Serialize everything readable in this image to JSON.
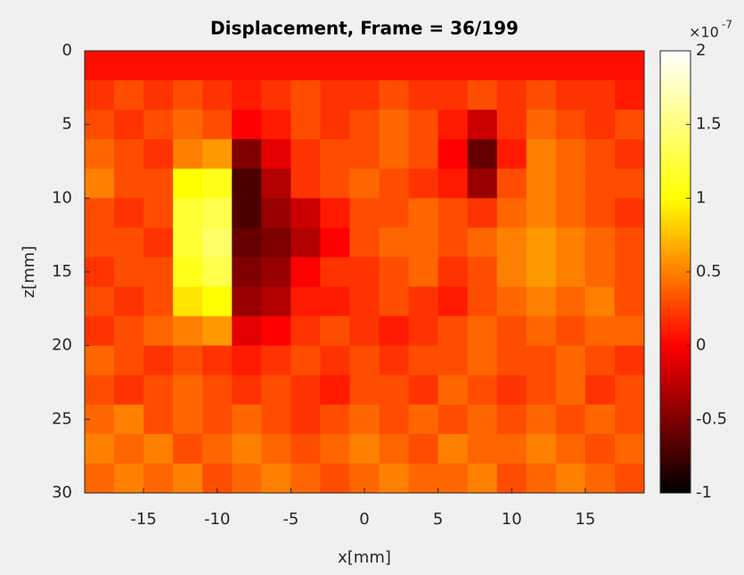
{
  "chart_data": {
    "type": "heatmap",
    "title": "Displacement, Frame = 36/199",
    "xlabel": "x[mm]",
    "ylabel": "z[mm]",
    "xlim": [
      -19,
      19
    ],
    "ylim": [
      0,
      30
    ],
    "y_reversed": true,
    "xticks": [
      -15,
      -10,
      -5,
      0,
      5,
      10,
      15
    ],
    "yticks": [
      0,
      5,
      10,
      15,
      20,
      25,
      30
    ],
    "colormap": "hot",
    "clim": [
      -1,
      2
    ],
    "colorbar_ticks": [
      -1,
      -0.5,
      0,
      0.5,
      1,
      1.5,
      2
    ],
    "colorbar_multiplier": {
      "base": "×10",
      "exponent": "-7"
    },
    "x": [
      -18,
      -16,
      -14,
      -12,
      -10,
      -8,
      -6,
      -4,
      -2,
      0,
      2,
      4,
      6,
      8,
      10,
      12,
      14,
      16,
      18
    ],
    "z": [
      1,
      3,
      5,
      7,
      9,
      11,
      13,
      15,
      17,
      19,
      21,
      23,
      25,
      27,
      29
    ],
    "values": [
      [
        0.05,
        0.05,
        0.05,
        0.05,
        0.05,
        0.05,
        0.05,
        0.05,
        0.05,
        0.05,
        0.05,
        0.05,
        0.05,
        0.05,
        0.05,
        0.05,
        0.05,
        0.05,
        0.05
      ],
      [
        0.2,
        0.3,
        0.2,
        0.3,
        0.2,
        0.1,
        0.2,
        0.3,
        0.2,
        0.2,
        0.3,
        0.2,
        0.2,
        0.3,
        0.2,
        0.3,
        0.2,
        0.2,
        0.1
      ],
      [
        0.3,
        0.2,
        0.3,
        0.4,
        0.3,
        0.0,
        0.1,
        0.3,
        0.2,
        0.3,
        0.4,
        0.3,
        0.1,
        -0.2,
        0.2,
        0.4,
        0.3,
        0.2,
        0.3
      ],
      [
        0.4,
        0.3,
        0.2,
        0.5,
        0.6,
        -0.5,
        -0.1,
        0.2,
        0.3,
        0.3,
        0.4,
        0.3,
        0.0,
        -0.6,
        0.1,
        0.5,
        0.4,
        0.3,
        0.2
      ],
      [
        0.5,
        0.3,
        0.3,
        1.0,
        1.1,
        -0.7,
        -0.3,
        0.2,
        0.3,
        0.4,
        0.3,
        0.2,
        0.1,
        -0.4,
        0.3,
        0.5,
        0.4,
        0.3,
        0.3
      ],
      [
        0.3,
        0.2,
        0.3,
        1.2,
        1.3,
        -0.7,
        -0.4,
        -0.2,
        0.1,
        0.3,
        0.3,
        0.4,
        0.3,
        0.2,
        0.4,
        0.5,
        0.4,
        0.3,
        0.2
      ],
      [
        0.3,
        0.3,
        0.2,
        1.2,
        1.4,
        -0.6,
        -0.5,
        -0.3,
        0.0,
        0.3,
        0.4,
        0.4,
        0.3,
        0.4,
        0.5,
        0.6,
        0.5,
        0.4,
        0.3
      ],
      [
        0.2,
        0.3,
        0.3,
        1.1,
        1.3,
        -0.5,
        -0.4,
        0.0,
        0.2,
        0.2,
        0.3,
        0.4,
        0.2,
        0.3,
        0.5,
        0.6,
        0.5,
        0.4,
        0.3
      ],
      [
        0.3,
        0.2,
        0.3,
        0.9,
        1.0,
        -0.4,
        -0.3,
        0.1,
        0.1,
        0.2,
        0.3,
        0.2,
        0.1,
        0.3,
        0.4,
        0.5,
        0.4,
        0.5,
        0.3
      ],
      [
        0.2,
        0.3,
        0.4,
        0.5,
        0.6,
        -0.1,
        0.0,
        0.2,
        0.3,
        0.2,
        0.1,
        0.2,
        0.3,
        0.4,
        0.3,
        0.4,
        0.3,
        0.4,
        0.4
      ],
      [
        0.4,
        0.3,
        0.2,
        0.3,
        0.2,
        0.1,
        0.2,
        0.3,
        0.2,
        0.3,
        0.2,
        0.3,
        0.3,
        0.4,
        0.3,
        0.3,
        0.4,
        0.3,
        0.2
      ],
      [
        0.3,
        0.2,
        0.3,
        0.4,
        0.3,
        0.2,
        0.3,
        0.2,
        0.1,
        0.3,
        0.3,
        0.2,
        0.4,
        0.3,
        0.2,
        0.3,
        0.4,
        0.2,
        0.3
      ],
      [
        0.4,
        0.5,
        0.3,
        0.4,
        0.3,
        0.4,
        0.3,
        0.2,
        0.3,
        0.4,
        0.3,
        0.4,
        0.3,
        0.4,
        0.3,
        0.4,
        0.3,
        0.4,
        0.3
      ],
      [
        0.5,
        0.4,
        0.5,
        0.3,
        0.4,
        0.5,
        0.4,
        0.3,
        0.4,
        0.5,
        0.4,
        0.3,
        0.5,
        0.4,
        0.4,
        0.5,
        0.4,
        0.3,
        0.4
      ],
      [
        0.4,
        0.5,
        0.4,
        0.5,
        0.3,
        0.4,
        0.5,
        0.4,
        0.3,
        0.4,
        0.5,
        0.4,
        0.4,
        0.5,
        0.3,
        0.4,
        0.5,
        0.4,
        0.3
      ]
    ]
  }
}
